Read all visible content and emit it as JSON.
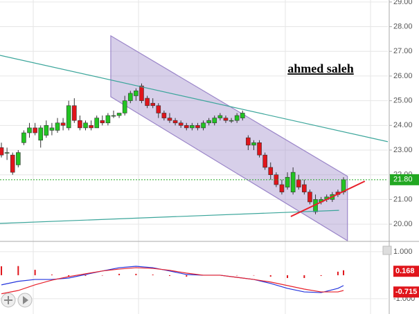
{
  "chart_data": {
    "type": "candlestick",
    "annotation": "ahmed saleh",
    "xlim": [
      -0.25,
      68.9
    ],
    "ylim": [
      19.33,
      29.08
    ],
    "yticks": [
      {
        "value": 20,
        "label": "20.00"
      },
      {
        "value": 21,
        "label": "21.00"
      },
      {
        "value": 22,
        "label": "22.00"
      },
      {
        "value": 23,
        "label": "23.00"
      },
      {
        "value": 24,
        "label": "24.00"
      },
      {
        "value": 25,
        "label": "25.00"
      },
      {
        "value": 26,
        "label": "26.00"
      },
      {
        "value": 27,
        "label": "27.00"
      },
      {
        "value": 28,
        "label": "28.00"
      },
      {
        "value": 29,
        "label": "29.00"
      }
    ],
    "grid": true,
    "up_color": "#22c422",
    "down_color": "#e0151b",
    "open": [
      23.1,
      22.9,
      22.8,
      22.4,
      23.3,
      23.7,
      23.9,
      23.4,
      23.6,
      23.8,
      23.8,
      24.1,
      23.9,
      24.8,
      24.2,
      23.9,
      24.0,
      23.9,
      24.2,
      24.1,
      24.4,
      24.4,
      24.5,
      25.0,
      25.2,
      25.6,
      25.1,
      24.9,
      24.8,
      24.5,
      24.3,
      24.2,
      24.1,
      24.0,
      23.9,
      24.0,
      23.9,
      24.1,
      24.1,
      24.3,
      24.3,
      24.2,
      24.2,
      24.3,
      23.5,
      23.2,
      23.3,
      22.8,
      22.3,
      22.0,
      21.6,
      21.5,
      21.3,
      21.8,
      21.6,
      21.3,
      20.5,
      20.9,
      21.0,
      21.0,
      21.3,
      21.3
    ],
    "high": [
      23.3,
      23.1,
      22.9,
      23.0,
      23.8,
      24.1,
      24.1,
      24.0,
      24.2,
      24.1,
      24.3,
      24.3,
      25.0,
      25.1,
      24.4,
      24.2,
      24.2,
      24.4,
      24.4,
      24.5,
      24.6,
      24.5,
      25.2,
      25.4,
      25.5,
      25.7,
      25.2,
      25.1,
      24.9,
      24.6,
      24.5,
      24.3,
      24.2,
      24.1,
      24.1,
      24.1,
      24.2,
      24.3,
      24.4,
      24.5,
      24.4,
      24.3,
      24.5,
      24.6,
      23.6,
      23.4,
      23.4,
      22.9,
      22.5,
      22.1,
      21.8,
      22.1,
      22.3,
      22.0,
      21.8,
      21.4,
      21.2,
      21.1,
      21.2,
      21.3,
      21.4,
      21.9
    ],
    "low": [
      22.7,
      22.6,
      22.0,
      22.3,
      23.2,
      23.5,
      23.6,
      23.1,
      23.5,
      23.6,
      23.7,
      23.8,
      23.8,
      24.1,
      23.8,
      23.8,
      23.8,
      23.9,
      24.0,
      24.0,
      24.3,
      24.3,
      24.4,
      24.9,
      25.0,
      24.9,
      24.7,
      24.7,
      24.3,
      24.2,
      24.1,
      24.0,
      23.9,
      23.8,
      23.8,
      23.8,
      23.8,
      24.0,
      24.0,
      24.2,
      24.1,
      24.1,
      24.1,
      24.2,
      23.0,
      23.0,
      22.7,
      22.2,
      21.8,
      21.5,
      21.2,
      21.4,
      21.2,
      21.4,
      21.2,
      20.8,
      20.4,
      20.8,
      20.9,
      20.9,
      21.1,
      21.2
    ],
    "close": [
      22.8,
      22.9,
      22.1,
      22.9,
      23.7,
      23.9,
      23.7,
      23.9,
      24.0,
      23.9,
      24.1,
      24.0,
      24.8,
      24.2,
      23.9,
      24.1,
      23.9,
      24.3,
      24.1,
      24.4,
      24.4,
      24.5,
      25.0,
      25.3,
      25.4,
      25.0,
      24.8,
      24.8,
      24.5,
      24.3,
      24.2,
      24.1,
      24.0,
      23.9,
      24.0,
      23.9,
      24.1,
      24.2,
      24.3,
      24.4,
      24.2,
      24.2,
      24.4,
      24.5,
      23.2,
      23.3,
      22.8,
      22.3,
      22.0,
      21.6,
      21.3,
      21.9,
      22.1,
      21.5,
      21.3,
      20.9,
      21.0,
      21.0,
      21.1,
      21.2,
      21.2,
      21.8
    ],
    "last_price": {
      "value": 21.8,
      "label": "21.80",
      "color": "#22a822"
    },
    "channel": {
      "x": [
        19.5,
        61.7,
        61.7,
        19.5
      ],
      "y": [
        27.63,
        21.94,
        19.33,
        25.16
      ],
      "color": "#9b86c9"
    },
    "trendlines": [
      {
        "x": [
          -0.25,
          68.9
        ],
        "y": [
          26.84,
          23.34
        ],
        "color": "#3aa59a"
      },
      {
        "x": [
          -0.25,
          60.2
        ],
        "y": [
          20.03,
          20.56
        ],
        "color": "#3aa59a"
      },
      {
        "x": [
          51.6,
          64.8
        ],
        "y": [
          20.31,
          21.74
        ],
        "color": "#e8202a"
      }
    ],
    "indicator": {
      "type": "macd",
      "ylim": [
        -1.65,
        1.41
      ],
      "yticks": [
        {
          "value": 1,
          "label": "1.000"
        },
        {
          "value": -1,
          "label": "-1.000"
        }
      ],
      "x": [
        0,
        3,
        6,
        9,
        12,
        15,
        18,
        21,
        24,
        27,
        30,
        33,
        36,
        39,
        42,
        45,
        48,
        51,
        54,
        57,
        60,
        61
      ],
      "macd": {
        "color": "#2233dd",
        "values": [
          -0.41,
          -0.26,
          -0.18,
          -0.18,
          -0.12,
          0.03,
          0.18,
          0.32,
          0.38,
          0.32,
          0.18,
          0.03,
          0,
          0,
          -0.09,
          -0.18,
          -0.35,
          -0.56,
          -0.71,
          -0.74,
          -0.56,
          -0.44
        ]
      },
      "signal": {
        "color": "#e8202a",
        "values": [
          -0.79,
          -0.65,
          -0.41,
          -0.21,
          -0.06,
          0.06,
          0.18,
          0.26,
          0.32,
          0.29,
          0.21,
          0.09,
          0,
          0,
          -0.09,
          -0.18,
          -0.29,
          -0.44,
          -0.59,
          -0.71,
          -0.71,
          -0.65
        ]
      },
      "histogram": {
        "color": "#e0151b",
        "values": [
          0.38,
          0.39,
          0.23,
          0.03,
          -0.06,
          -0.03,
          0,
          0.06,
          0.06,
          0.03,
          -0.03,
          -0.06,
          0,
          0,
          0,
          0,
          -0.06,
          -0.12,
          -0.12,
          -0.03,
          0.15,
          0.21
        ]
      },
      "markers": [
        {
          "value": 0.168,
          "color": "#e0151b"
        },
        {
          "value": -0.715,
          "color": "#e0151b"
        }
      ]
    }
  }
}
